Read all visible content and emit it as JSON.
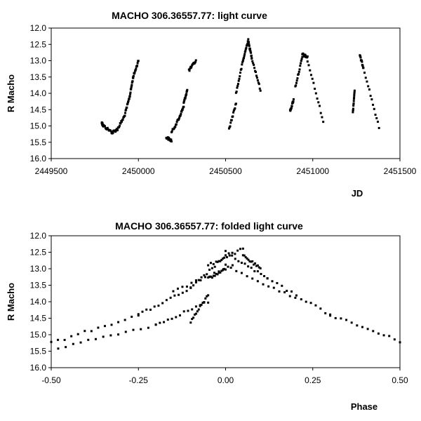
{
  "chart_data": [
    {
      "type": "scatter",
      "title": "MACHO 306.36557.77: light curve",
      "xlabel": "JD",
      "ylabel": "R Macho",
      "xlim": [
        2449500,
        2451500
      ],
      "ylim": [
        12.0,
        16.0
      ],
      "y_inverted": true,
      "x_ticks": [
        "2449500",
        "2450000",
        "2450500",
        "2451000",
        "2451500"
      ],
      "y_ticks": [
        "12.0",
        "12.5",
        "13.0",
        "13.5",
        "14.0",
        "14.5",
        "15.0",
        "15.5",
        "16.0"
      ],
      "segments": [
        {
          "x0": 2449790,
          "x1": 2449800,
          "y0": 14.9,
          "y1": 15.0
        },
        {
          "x0": 2449800,
          "x1": 2449850,
          "y0": 15.0,
          "y1": 15.2
        },
        {
          "x0": 2449850,
          "x1": 2449880,
          "y0": 15.2,
          "y1": 15.1
        },
        {
          "x0": 2449880,
          "x1": 2449920,
          "y0": 15.1,
          "y1": 14.7
        },
        {
          "x0": 2449920,
          "x1": 2449950,
          "y0": 14.7,
          "y1": 14.1
        },
        {
          "x0": 2449950,
          "x1": 2449970,
          "y0": 14.1,
          "y1": 13.5
        },
        {
          "x0": 2449970,
          "x1": 2450000,
          "y0": 13.5,
          "y1": 13.0
        },
        {
          "x0": 2450160,
          "x1": 2450190,
          "y0": 15.35,
          "y1": 15.45
        },
        {
          "x0": 2450190,
          "x1": 2450230,
          "y0": 15.2,
          "y1": 14.8
        },
        {
          "x0": 2450230,
          "x1": 2450260,
          "y0": 14.8,
          "y1": 14.4
        },
        {
          "x0": 2450260,
          "x1": 2450280,
          "y0": 14.3,
          "y1": 13.9
        },
        {
          "x0": 2450290,
          "x1": 2450330,
          "y0": 13.3,
          "y1": 13.0
        },
        {
          "x0": 2450520,
          "x1": 2450560,
          "y0": 15.1,
          "y1": 14.3
        },
        {
          "x0": 2450560,
          "x1": 2450600,
          "y0": 14.0,
          "y1": 13.0
        },
        {
          "x0": 2450600,
          "x1": 2450630,
          "y0": 13.0,
          "y1": 12.35
        },
        {
          "x0": 2450630,
          "x1": 2450650,
          "y0": 12.4,
          "y1": 12.9
        },
        {
          "x0": 2450650,
          "x1": 2450700,
          "y0": 12.9,
          "y1": 13.9
        },
        {
          "x0": 2450870,
          "x1": 2450890,
          "y0": 14.55,
          "y1": 14.2
        },
        {
          "x0": 2450900,
          "x1": 2450940,
          "y0": 13.8,
          "y1": 12.9
        },
        {
          "x0": 2450940,
          "x1": 2450970,
          "y0": 12.8,
          "y1": 12.9
        },
        {
          "x0": 2450970,
          "x1": 2451060,
          "y0": 13.0,
          "y1": 14.85
        },
        {
          "x0": 2451230,
          "x1": 2451240,
          "y0": 14.6,
          "y1": 13.9
        },
        {
          "x0": 2451270,
          "x1": 2451290,
          "y0": 12.85,
          "y1": 13.2
        },
        {
          "x0": 2451290,
          "x1": 2451380,
          "y0": 13.2,
          "y1": 15.05
        }
      ]
    },
    {
      "type": "scatter",
      "title": "MACHO 306.36557.77: folded light curve",
      "xlabel": "Phase",
      "ylabel": "R Macho",
      "xlim": [
        -0.5,
        0.5
      ],
      "ylim": [
        12.0,
        16.0
      ],
      "y_inverted": true,
      "x_ticks": [
        "-0.50",
        "-0.25",
        "0.00",
        "0.25",
        "0.50"
      ],
      "y_ticks": [
        "12.0",
        "12.5",
        "13.0",
        "13.5",
        "14.0",
        "14.5",
        "15.0",
        "15.5",
        "16.0"
      ],
      "segments": [
        {
          "x0": -0.5,
          "x1": -0.25,
          "y0": 15.25,
          "y1": 14.4
        },
        {
          "x0": -0.25,
          "x1": -0.1,
          "y0": 14.4,
          "y1": 13.6
        },
        {
          "x0": -0.1,
          "x1": 0.0,
          "y0": 13.6,
          "y1": 12.6
        },
        {
          "x0": 0.0,
          "x1": 0.12,
          "y0": 12.5,
          "y1": 13.3
        },
        {
          "x0": 0.12,
          "x1": 0.3,
          "y0": 13.3,
          "y1": 14.4
        },
        {
          "x0": 0.3,
          "x1": 0.5,
          "y0": 14.4,
          "y1": 15.2
        },
        {
          "x0": -0.48,
          "x1": -0.2,
          "y0": 15.4,
          "y1": 14.7
        },
        {
          "x0": -0.2,
          "x1": -0.05,
          "y0": 14.7,
          "y1": 14.0
        },
        {
          "x0": -0.15,
          "x1": 0.02,
          "y0": 13.7,
          "y1": 12.9
        },
        {
          "x0": 0.0,
          "x1": 0.2,
          "y0": 12.9,
          "y1": 13.9
        },
        {
          "x0": -0.05,
          "x1": 0.05,
          "y0": 12.9,
          "y1": 12.4
        },
        {
          "x0": 0.05,
          "x1": 0.1,
          "y0": 12.6,
          "y1": 13.0
        },
        {
          "x0": -0.05,
          "x1": 0.0,
          "y0": 13.3,
          "y1": 13.0
        },
        {
          "x0": -0.1,
          "x1": -0.05,
          "y0": 14.6,
          "y1": 13.8
        }
      ]
    }
  ]
}
